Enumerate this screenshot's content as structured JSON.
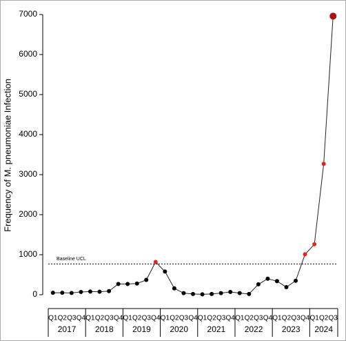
{
  "chart_data": {
    "type": "line",
    "y_label": "Frequency of M. pneumoniae Infection",
    "categories": [
      "Q1",
      "Q2",
      "Q3",
      "Q4",
      "Q1",
      "Q2",
      "Q3",
      "Q4",
      "Q1",
      "Q2",
      "Q3",
      "Q4",
      "Q1",
      "Q2",
      "Q3",
      "Q4",
      "Q1",
      "Q2",
      "Q3",
      "Q4",
      "Q1",
      "Q2",
      "Q3",
      "Q4",
      "Q1",
      "Q2",
      "Q3",
      "Q4",
      "Q1",
      "Q2",
      "Q3"
    ],
    "years": [
      "2017",
      "2018",
      "2019",
      "2020",
      "2021",
      "2022",
      "2023",
      "2024"
    ],
    "series": [
      {
        "color": "#222222",
        "values": [
          50,
          50,
          45,
          70,
          80,
          75,
          90,
          270,
          270,
          280,
          370,
          820,
          580,
          160,
          40,
          20,
          10,
          20,
          40,
          70,
          40,
          20,
          260,
          400,
          340,
          190,
          350,
          1010,
          1260,
          3270,
          6960
        ],
        "point_colors": [
          "#000000",
          "#000000",
          "#000000",
          "#000000",
          "#000000",
          "#000000",
          "#000000",
          "#000000",
          "#000000",
          "#000000",
          "#000000",
          "#e8221b",
          "#000000",
          "#000000",
          "#000000",
          "#000000",
          "#000000",
          "#000000",
          "#000000",
          "#000000",
          "#000000",
          "#000000",
          "#000000",
          "#000000",
          "#000000",
          "#000000",
          "#000000",
          "#e8221b",
          "#e8221b",
          "#e8221b",
          "#b01010"
        ]
      }
    ],
    "reference_line": {
      "label": "Baseline UCL",
      "value": 770
    },
    "ylim": [
      0,
      7000
    ],
    "yticks": [
      0,
      1000,
      2000,
      3000,
      4000,
      5000,
      6000,
      7000
    ]
  }
}
